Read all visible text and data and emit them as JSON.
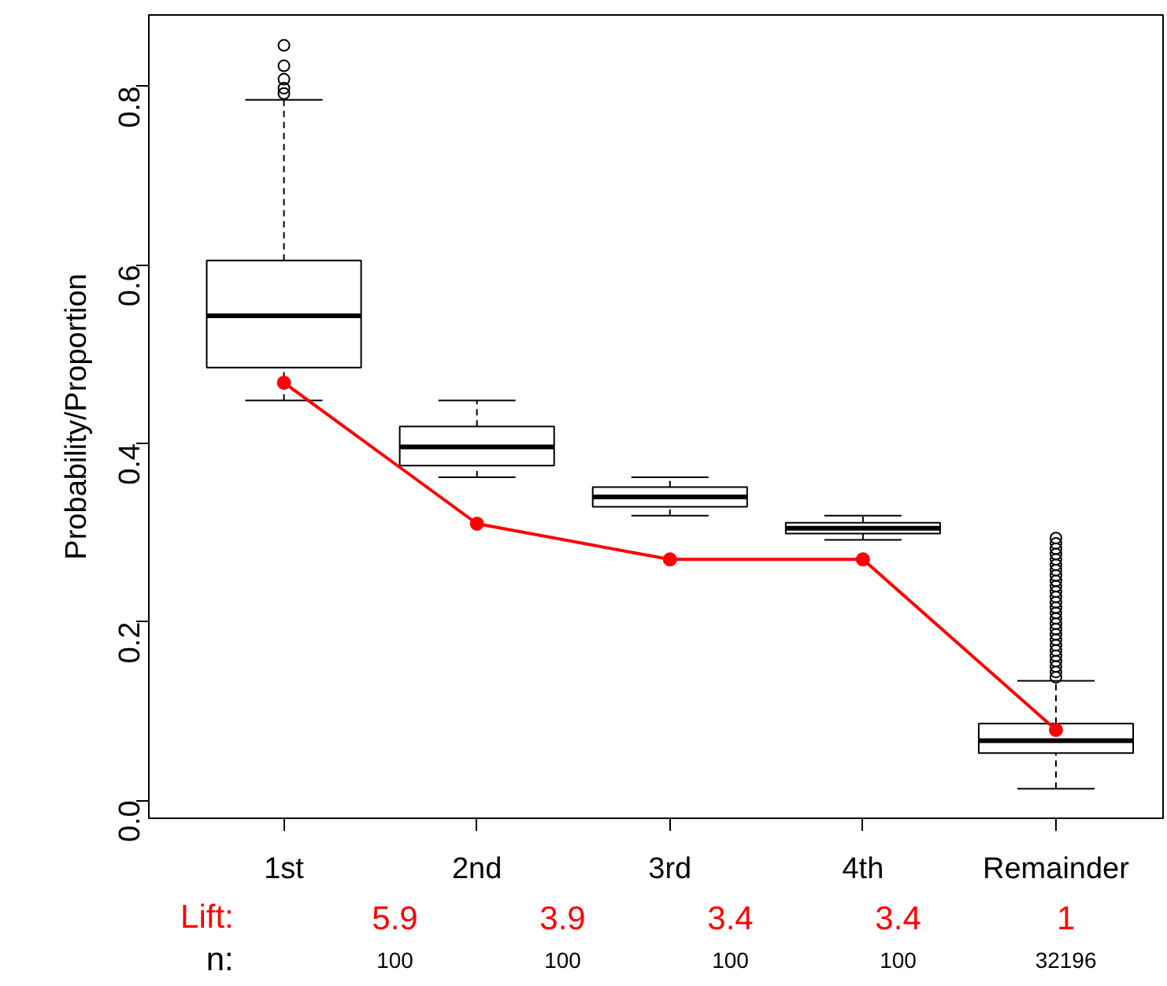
{
  "chart_data": {
    "type": "box",
    "ylabel": "Probability/Proportion",
    "categories": [
      "1st",
      "2nd",
      "3rd",
      "4th",
      "Remainder"
    ],
    "ylim": [
      -0.02,
      0.88
    ],
    "yticks": [
      {
        "value": 0,
        "label": "0.0"
      },
      {
        "value": 0.2,
        "label": "0.2"
      },
      {
        "value": 0.4,
        "label": "0.4"
      },
      {
        "value": 0.6,
        "label": "0.6"
      },
      {
        "value": 0.8,
        "label": "0.8"
      }
    ],
    "marker": "circle",
    "grid": false,
    "series": [
      {
        "type": "box",
        "color": "#000000",
        "boxes": [
          {
            "low": 0.448,
            "q1": 0.485,
            "median": 0.543,
            "q3": 0.605,
            "high": 0.785,
            "outliers": [
              0.792,
              0.798,
              0.808,
              0.823,
              0.846
            ]
          },
          {
            "low": 0.362,
            "q1": 0.375,
            "median": 0.396,
            "q3": 0.419,
            "high": 0.448
          },
          {
            "low": 0.319,
            "q1": 0.329,
            "median": 0.34,
            "q3": 0.351,
            "high": 0.362
          },
          {
            "low": 0.292,
            "q1": 0.299,
            "median": 0.305,
            "q3": 0.311,
            "high": 0.319
          },
          {
            "low": 0.013,
            "q1": 0.053,
            "median": 0.067,
            "q3": 0.086,
            "high": 0.134,
            "outliers": [
              0.138,
              0.144,
              0.15,
              0.156,
              0.162,
              0.168,
              0.174,
              0.18,
              0.186,
              0.192,
              0.198,
              0.204,
              0.21,
              0.216,
              0.222,
              0.228,
              0.234,
              0.24,
              0.246,
              0.252,
              0.258,
              0.264,
              0.27,
              0.276,
              0.282,
              0.288,
              0.294
            ]
          }
        ]
      },
      {
        "type": "line",
        "color": "#ff0000",
        "values": [
          0.468,
          0.31,
          0.27,
          0.27,
          0.079
        ]
      }
    ],
    "annotations": [
      "Lift:",
      "5.9",
      "3.9",
      "3.4",
      "3.4",
      "1",
      "n:",
      "100",
      "100",
      "100",
      "100",
      "32196"
    ]
  }
}
